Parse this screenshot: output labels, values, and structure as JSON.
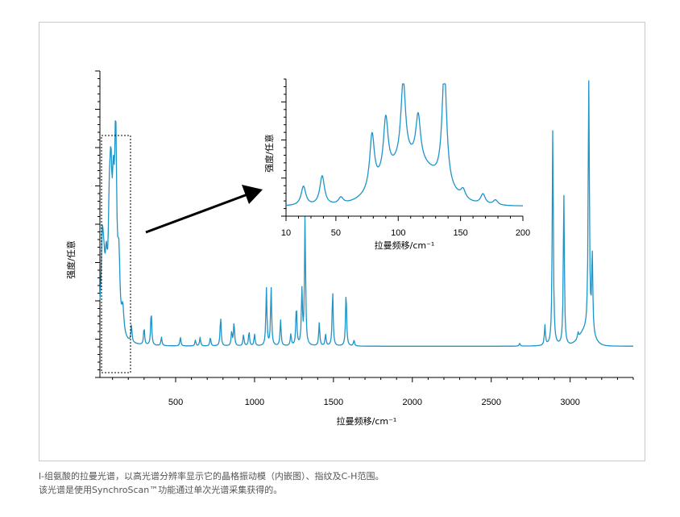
{
  "caption": {
    "line1": "l-组氨酸的拉曼光谱，以高光谱分辨率显示它的晶格振动模（内嵌图）、指纹及C-H范围。",
    "line2": "该光谱是使用SynchroScan™功能通过单次光谱采集获得的。"
  },
  "colors": {
    "spectrum": "#1e94c8",
    "axis": "#000000",
    "arrow": "#000000"
  },
  "chart_data": [
    {
      "id": "main",
      "type": "line",
      "xlabel": "拉曼频移/cm⁻¹",
      "ylabel": "强度/任意",
      "xlim": [
        20,
        3400
      ],
      "ylim": [
        0,
        1
      ],
      "xticks": [
        500,
        1000,
        1500,
        2000,
        2500,
        3000
      ],
      "xtick_labels": [
        "500",
        "1000",
        "1500",
        "2000",
        "2500",
        "3000"
      ],
      "y_tick_labels_shown": false,
      "baseline": 0.08,
      "peaks": [
        {
          "x": 35,
          "y": 0.27
        },
        {
          "x": 45,
          "y": 0.14
        },
        {
          "x": 60,
          "y": 0.18
        },
        {
          "x": 80,
          "y": 0.32
        },
        {
          "x": 90,
          "y": 0.4
        },
        {
          "x": 105,
          "y": 0.36
        },
        {
          "x": 120,
          "y": 0.63
        },
        {
          "x": 140,
          "y": 0.23
        },
        {
          "x": 165,
          "y": 0.09
        },
        {
          "x": 220,
          "y": 0.06
        },
        {
          "x": 300,
          "y": 0.06
        },
        {
          "x": 345,
          "y": 0.12
        },
        {
          "x": 410,
          "y": 0.03
        },
        {
          "x": 530,
          "y": 0.03
        },
        {
          "x": 625,
          "y": 0.02
        },
        {
          "x": 655,
          "y": 0.03
        },
        {
          "x": 720,
          "y": 0.03
        },
        {
          "x": 785,
          "y": 0.1
        },
        {
          "x": 855,
          "y": 0.05
        },
        {
          "x": 870,
          "y": 0.08
        },
        {
          "x": 930,
          "y": 0.04
        },
        {
          "x": 965,
          "y": 0.05
        },
        {
          "x": 1000,
          "y": 0.04
        },
        {
          "x": 1075,
          "y": 0.2
        },
        {
          "x": 1105,
          "y": 0.2
        },
        {
          "x": 1165,
          "y": 0.09
        },
        {
          "x": 1230,
          "y": 0.04
        },
        {
          "x": 1265,
          "y": 0.14
        },
        {
          "x": 1300,
          "y": 0.19
        },
        {
          "x": 1320,
          "y": 0.45
        },
        {
          "x": 1410,
          "y": 0.08
        },
        {
          "x": 1450,
          "y": 0.04
        },
        {
          "x": 1495,
          "y": 0.19
        },
        {
          "x": 1580,
          "y": 0.19
        },
        {
          "x": 1630,
          "y": 0.02
        },
        {
          "x": 2680,
          "y": 0.01
        },
        {
          "x": 2840,
          "y": 0.07
        },
        {
          "x": 2890,
          "y": 0.77
        },
        {
          "x": 2960,
          "y": 0.53
        },
        {
          "x": 3050,
          "y": 0.02
        },
        {
          "x": 3118,
          "y": 0.98
        },
        {
          "x": 3140,
          "y": 0.28
        }
      ]
    },
    {
      "id": "inset",
      "type": "line",
      "xlabel": "拉曼频移/cm⁻¹",
      "ylabel": "强度/任意",
      "xlim": [
        10,
        200
      ],
      "ylim": [
        0,
        1
      ],
      "xticks": [
        10,
        50,
        100,
        150,
        200
      ],
      "xtick_labels": [
        "10",
        "50",
        "100",
        "150",
        "200"
      ],
      "y_tick_labels_shown": false,
      "baseline": 0.04,
      "peaks": [
        {
          "x": 24,
          "y": 0.15
        },
        {
          "x": 39,
          "y": 0.23
        },
        {
          "x": 54,
          "y": 0.05
        },
        {
          "x": 79,
          "y": 0.43
        },
        {
          "x": 90,
          "y": 0.45
        },
        {
          "x": 104,
          "y": 0.63
        },
        {
          "x": 116,
          "y": 0.36
        },
        {
          "x": 137,
          "y": 0.92
        },
        {
          "x": 152,
          "y": 0.07
        },
        {
          "x": 168,
          "y": 0.08
        },
        {
          "x": 178,
          "y": 0.04
        }
      ]
    }
  ]
}
